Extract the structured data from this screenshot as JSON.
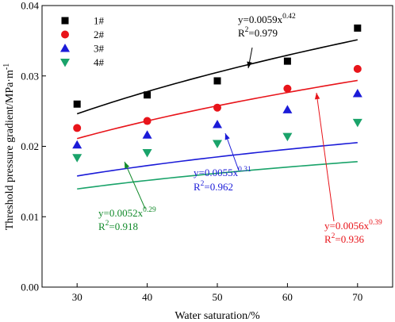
{
  "chart_data": {
    "type": "scatter",
    "xlabel": "Water saturation/%",
    "ylabel": "Threshold pressure gradient/MPa·m",
    "ylabel_sup": "-1",
    "xlim": [
      25,
      75
    ],
    "ylim": [
      0,
      0.04
    ],
    "xticks": [
      "30",
      "40",
      "50",
      "60",
      "70"
    ],
    "yticks": [
      "0.00",
      "0.01",
      "0.02",
      "0.03",
      "0.04"
    ],
    "xtick_values": [
      30,
      40,
      50,
      60,
      70
    ],
    "ytick_values": [
      0,
      0.01,
      0.02,
      0.03,
      0.04
    ],
    "legend_position": "top-left",
    "series": [
      {
        "name": "1#",
        "color": "#000000",
        "marker": "square",
        "x": [
          30,
          40,
          50,
          60,
          70
        ],
        "y": [
          0.026,
          0.0273,
          0.0293,
          0.0321,
          0.0368
        ],
        "fit": {
          "a": 0.0059,
          "b": 0.42
        },
        "eq_pre": "y=0.0059x",
        "eq_exp": "0.42",
        "r2_pre": "R",
        "r2_exp": "2",
        "r2_val": "=0.979"
      },
      {
        "name": "2#",
        "color": "#e8141a",
        "marker": "circle",
        "x": [
          30,
          40,
          50,
          60,
          70
        ],
        "y": [
          0.0226,
          0.0236,
          0.0255,
          0.0282,
          0.031
        ],
        "fit": {
          "a": 0.0056,
          "b": 0.39
        },
        "eq_pre": "y=0.0056x",
        "eq_exp": "0.39",
        "r2_pre": "R",
        "r2_exp": "2",
        "r2_val": "=0.936"
      },
      {
        "name": "3#",
        "color": "#1b1bd8",
        "marker": "triangle-up",
        "x": [
          30,
          40,
          50,
          60,
          70
        ],
        "y": [
          0.0202,
          0.0216,
          0.0231,
          0.0252,
          0.0275
        ],
        "fit": {
          "a": 0.0055,
          "b": 0.31
        },
        "eq_pre": "y=0.0055x",
        "eq_exp": "0.31",
        "r2_pre": "R",
        "r2_exp": "2",
        "r2_val": "=0.962"
      },
      {
        "name": "4#",
        "color": "#1aa36a",
        "marker": "triangle-down",
        "x": [
          30,
          40,
          50,
          60,
          70
        ],
        "y": [
          0.0184,
          0.0191,
          0.0204,
          0.0214,
          0.0234
        ],
        "fit": {
          "a": 0.0052,
          "b": 0.29
        },
        "eq_pre": "y=0.0052x",
        "eq_exp": "0.29",
        "r2_pre": "R",
        "r2_exp": "2",
        "r2_val": "=0.918"
      }
    ],
    "annotation_colors": [
      "#000000",
      "#e8141a",
      "#1b1bd8",
      "#118a2a"
    ]
  }
}
